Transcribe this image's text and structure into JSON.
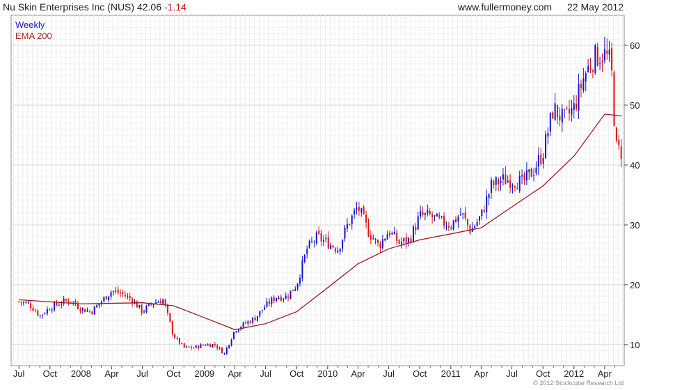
{
  "header": {
    "title": "Nu Skin Enterprises Inc (NUS) 42.06",
    "change": "-1.14",
    "site": "www.fullermoney.com",
    "date": "22 May 2012"
  },
  "footer": {
    "copyright": "© 2012 Stockcube Research Ltd"
  },
  "colors": {
    "up": "#1414d2",
    "down": "#e01010",
    "ema": "#a01818",
    "grid": "#d8d8d8"
  },
  "chart_data": {
    "type": "candlestick",
    "legend": [
      "Weekly",
      "EMA 200"
    ],
    "x_tick_labels": [
      "Jul",
      "Oct",
      "2008",
      "Apr",
      "Jul",
      "Oct",
      "2009",
      "Apr",
      "Jul",
      "Oct",
      "2010",
      "Apr",
      "Jul",
      "Oct",
      "2011",
      "Apr",
      "Jul",
      "Oct",
      "2012",
      "Apr"
    ],
    "y_ticks": [
      10,
      20,
      30,
      40,
      50,
      60
    ],
    "ylim": [
      6.5,
      65
    ],
    "grid": true,
    "y_axis_position": "right",
    "price_points": [
      [
        "2007-07-01",
        17.2
      ],
      [
        "2007-08-01",
        16.8
      ],
      [
        "2007-09-01",
        14.8
      ],
      [
        "2007-10-01",
        16.2
      ],
      [
        "2007-11-01",
        17.0
      ],
      [
        "2007-12-01",
        17.5
      ],
      [
        "2008-01-01",
        16.0
      ],
      [
        "2008-02-01",
        15.5
      ],
      [
        "2008-03-01",
        17.2
      ],
      [
        "2008-04-01",
        19.0
      ],
      [
        "2008-05-01",
        18.5
      ],
      [
        "2008-06-01",
        17.5
      ],
      [
        "2008-07-01",
        15.5
      ],
      [
        "2008-08-01",
        17.0
      ],
      [
        "2008-09-01",
        17.5
      ],
      [
        "2008-10-01",
        11.5
      ],
      [
        "2008-11-01",
        9.5
      ],
      [
        "2008-12-01",
        9.5
      ],
      [
        "2009-01-01",
        10.0
      ],
      [
        "2009-02-01",
        10.0
      ],
      [
        "2009-03-01",
        8.5
      ],
      [
        "2009-04-01",
        12.5
      ],
      [
        "2009-05-01",
        13.5
      ],
      [
        "2009-06-01",
        14.5
      ],
      [
        "2009-07-01",
        16.5
      ],
      [
        "2009-08-01",
        18.0
      ],
      [
        "2009-09-01",
        18.0
      ],
      [
        "2009-10-01",
        20.0
      ],
      [
        "2009-11-01",
        26.0
      ],
      [
        "2009-12-01",
        28.0
      ],
      [
        "2010-01-01",
        27.0
      ],
      [
        "2010-02-01",
        26.0
      ],
      [
        "2010-03-01",
        30.0
      ],
      [
        "2010-04-01",
        33.0
      ],
      [
        "2010-05-01",
        29.0
      ],
      [
        "2010-06-01",
        26.5
      ],
      [
        "2010-07-01",
        29.0
      ],
      [
        "2010-08-01",
        27.0
      ],
      [
        "2010-09-01",
        27.5
      ],
      [
        "2010-10-01",
        31.5
      ],
      [
        "2010-11-01",
        31.5
      ],
      [
        "2010-12-01",
        30.5
      ],
      [
        "2011-01-01",
        30.0
      ],
      [
        "2011-02-01",
        32.0
      ],
      [
        "2011-03-01",
        29.0
      ],
      [
        "2011-04-01",
        31.5
      ],
      [
        "2011-05-01",
        36.5
      ],
      [
        "2011-06-01",
        37.5
      ],
      [
        "2011-07-01",
        37.5
      ],
      [
        "2011-08-01",
        37.0
      ],
      [
        "2011-09-01",
        39.0
      ],
      [
        "2011-10-01",
        42.0
      ],
      [
        "2011-11-01",
        49.5
      ],
      [
        "2011-12-01",
        47.5
      ],
      [
        "2012-01-01",
        49.5
      ],
      [
        "2012-02-01",
        55.0
      ],
      [
        "2012-03-01",
        58.0
      ],
      [
        "2012-04-01",
        58.5
      ],
      [
        "2012-04-20",
        57.0
      ],
      [
        "2012-05-04",
        43.0
      ],
      [
        "2012-05-22",
        42.06
      ]
    ],
    "ema_points": [
      [
        "2007-07-01",
        17.5
      ],
      [
        "2008-01-01",
        16.8
      ],
      [
        "2008-07-01",
        17.0
      ],
      [
        "2008-10-01",
        16.5
      ],
      [
        "2009-01-01",
        14.5
      ],
      [
        "2009-04-01",
        12.5
      ],
      [
        "2009-07-01",
        13.5
      ],
      [
        "2009-10-01",
        15.5
      ],
      [
        "2010-01-01",
        19.5
      ],
      [
        "2010-04-01",
        23.5
      ],
      [
        "2010-07-01",
        26.0
      ],
      [
        "2010-10-01",
        27.5
      ],
      [
        "2011-01-01",
        28.5
      ],
      [
        "2011-04-01",
        29.5
      ],
      [
        "2011-07-01",
        33.0
      ],
      [
        "2011-10-01",
        36.5
      ],
      [
        "2012-01-01",
        41.5
      ],
      [
        "2012-04-01",
        48.5
      ],
      [
        "2012-05-22",
        48.2
      ]
    ]
  }
}
